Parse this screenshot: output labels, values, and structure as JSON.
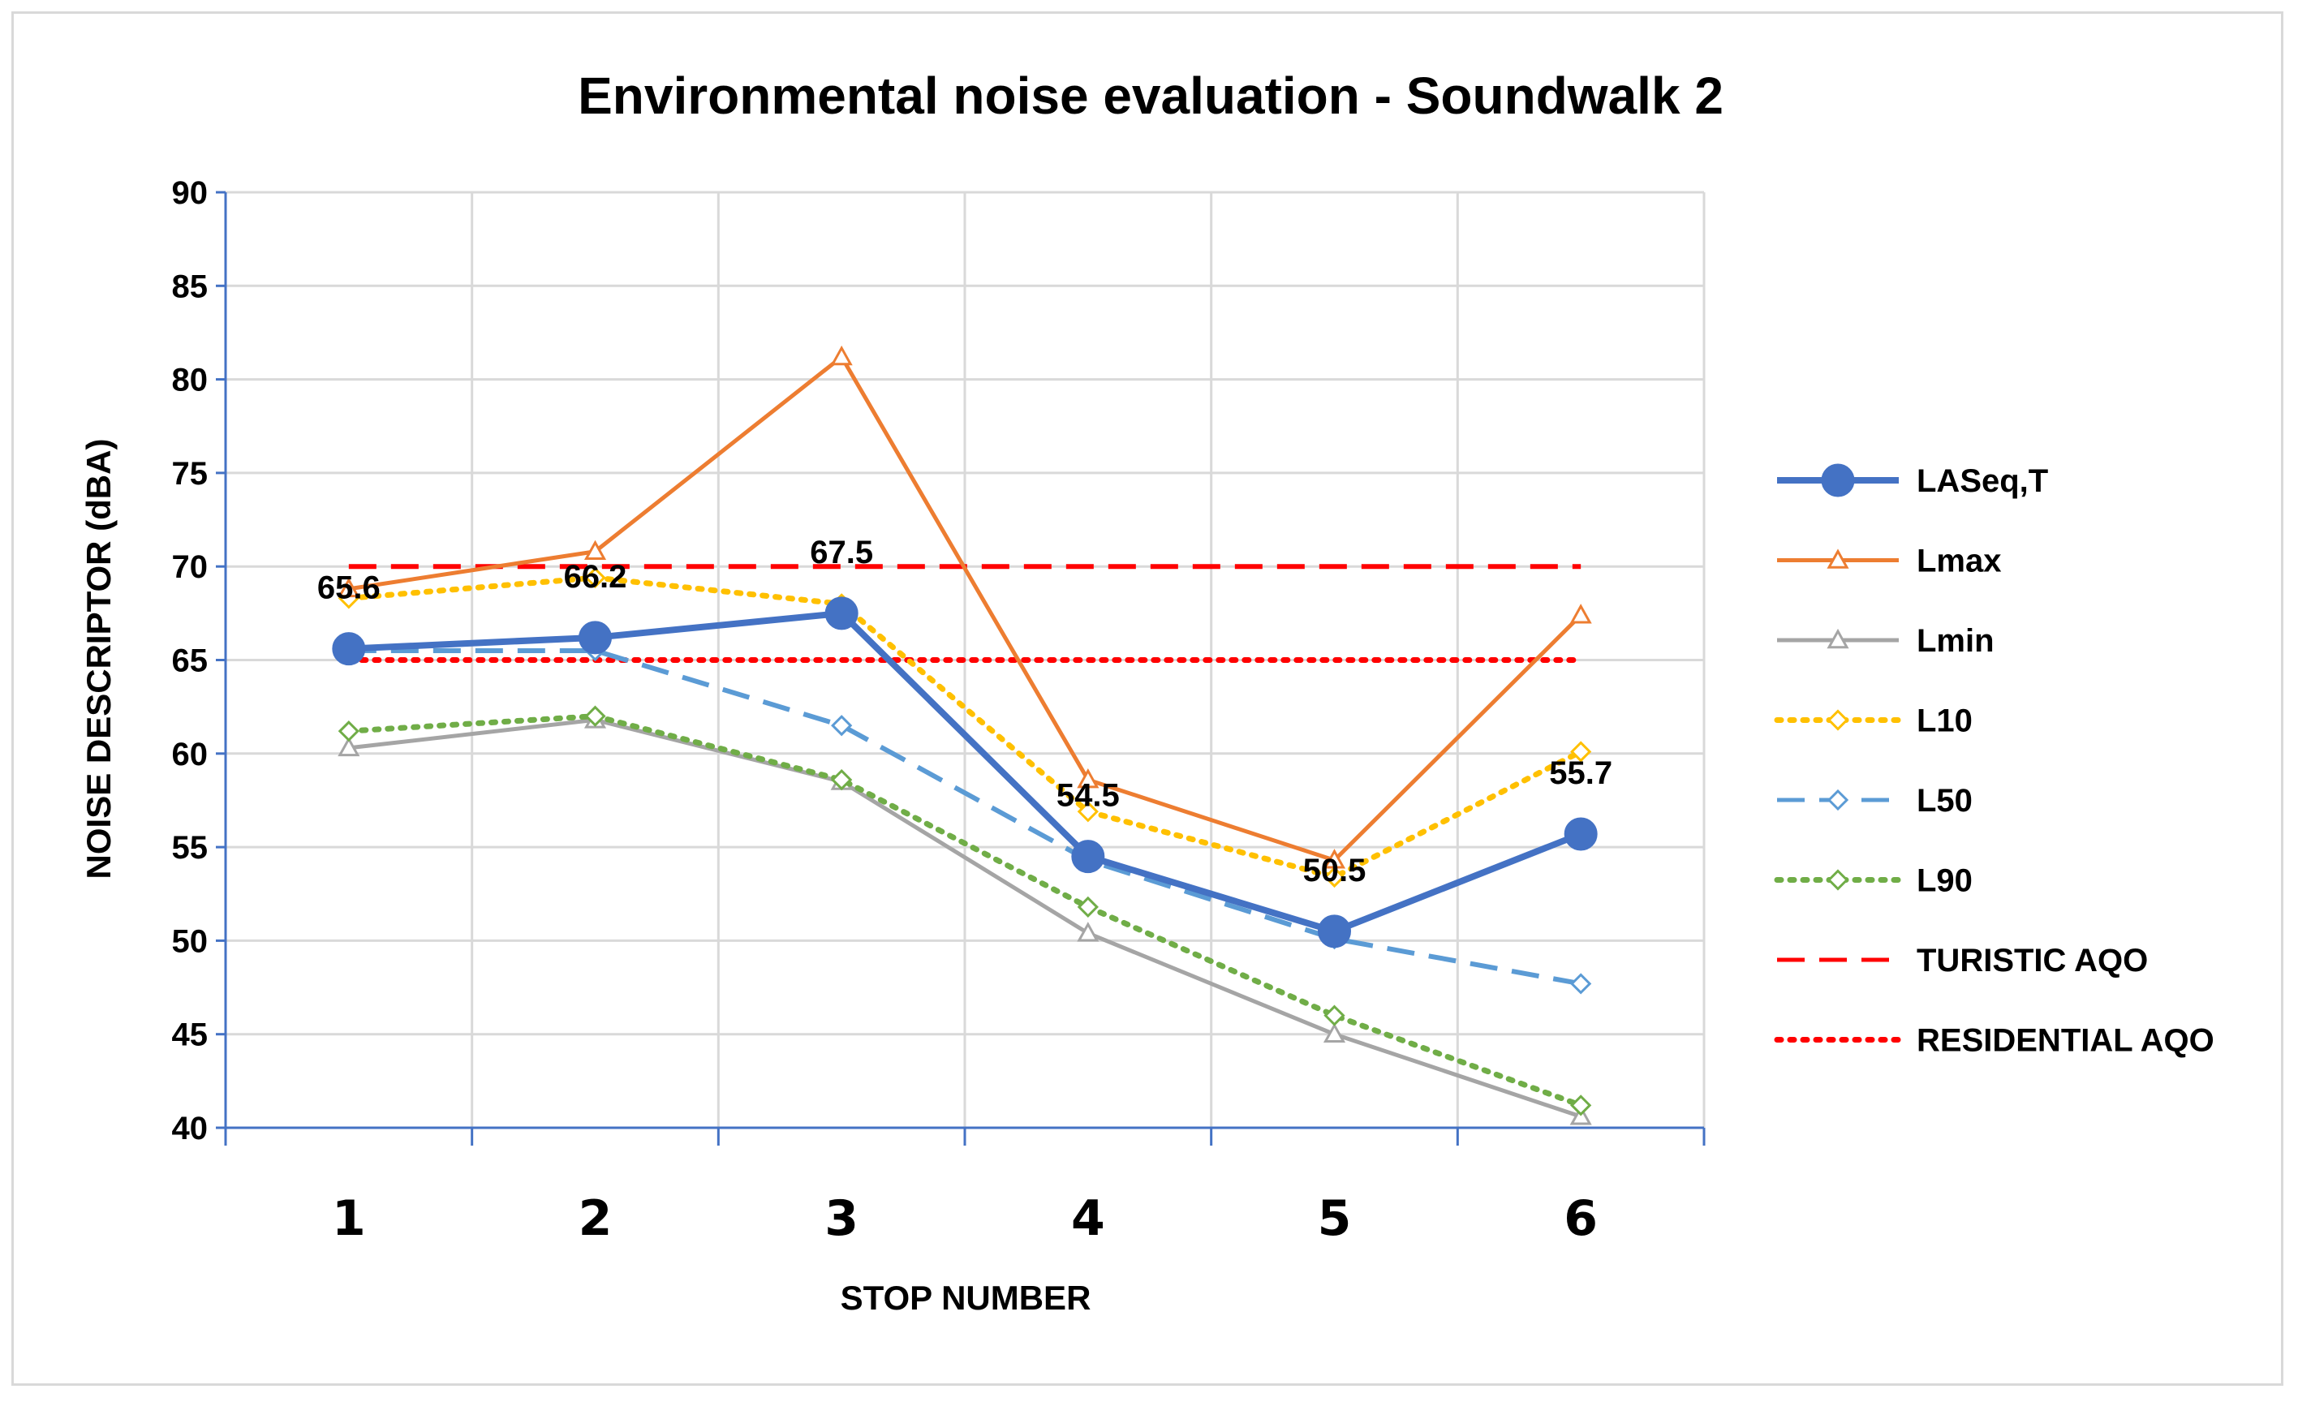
{
  "chart_data": {
    "type": "line",
    "title": "Environmental noise evaluation - Soundwalk 2",
    "xlabel": "STOP NUMBER",
    "ylabel": "NOISE DESCRIPTOR (dBA)",
    "categories": [
      "1",
      "2",
      "3",
      "4",
      "5",
      "6"
    ],
    "ylim": [
      40,
      90
    ],
    "yticks": [
      40,
      45,
      50,
      55,
      60,
      65,
      70,
      75,
      80,
      85,
      90
    ],
    "grid": true,
    "legend_position": "right",
    "series": [
      {
        "name": "LASeq,T",
        "values": [
          65.6,
          66.2,
          67.5,
          54.5,
          50.5,
          55.7
        ],
        "color": "#4472C4",
        "style": "solid",
        "marker": "circle",
        "data_labels": [
          "65.6",
          "66.2",
          "67.5",
          "54.5",
          "50.5",
          "55.7"
        ]
      },
      {
        "name": "Lmax",
        "values": [
          68.8,
          70.8,
          81.2,
          58.6,
          54.3,
          67.4
        ],
        "color": "#ED7D31",
        "style": "solid",
        "marker": "triangle"
      },
      {
        "name": "Lmin",
        "values": [
          60.3,
          61.8,
          58.5,
          50.4,
          45.0,
          40.6
        ],
        "color": "#A5A5A5",
        "style": "solid",
        "marker": "triangle"
      },
      {
        "name": "L10",
        "values": [
          68.3,
          69.4,
          68.0,
          56.9,
          53.4,
          60.1
        ],
        "color": "#FFC000",
        "style": "dotted",
        "marker": "diamond"
      },
      {
        "name": "L50",
        "values": [
          65.5,
          65.5,
          61.5,
          54.3,
          50.1,
          47.7
        ],
        "color": "#5B9BD5",
        "style": "dashed",
        "marker": "diamond"
      },
      {
        "name": "L90",
        "values": [
          61.2,
          62.0,
          58.6,
          51.8,
          46.0,
          41.2
        ],
        "color": "#70AD47",
        "style": "dotted",
        "marker": "diamond"
      },
      {
        "name": "TURISTIC AQO",
        "values": [
          70,
          70,
          70,
          70,
          70,
          70
        ],
        "color": "#FF0000",
        "style": "dashed",
        "marker": "none"
      },
      {
        "name": "RESIDENTIAL AQO",
        "values": [
          65,
          65,
          65,
          65,
          65,
          65
        ],
        "color": "#FF0000",
        "style": "dotted",
        "marker": "none"
      }
    ]
  }
}
